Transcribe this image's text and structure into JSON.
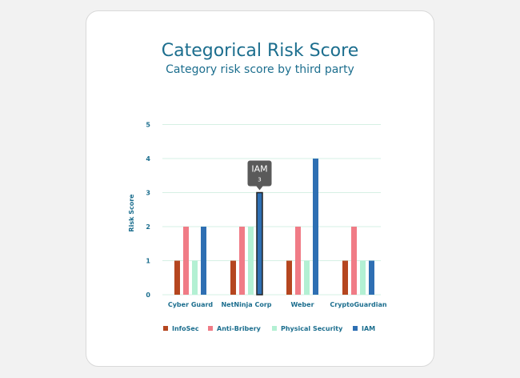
{
  "chart_data": {
    "type": "bar",
    "title": "Categorical Risk Score",
    "subtitle": "Category risk score by third party",
    "ylabel": "Risk Score",
    "xlabel": "",
    "ylim": [
      0,
      5
    ],
    "yticks": [
      0,
      1,
      2,
      3,
      4,
      5
    ],
    "grid": true,
    "legend_position": "bottom",
    "categories": [
      "Cyber Guard",
      "NetNinja Corp",
      "Weber",
      "CryptoGuardian"
    ],
    "series": [
      {
        "name": "InfoSec",
        "color": "#b5461f",
        "values": [
          1,
          1,
          1,
          1
        ]
      },
      {
        "name": "Anti-Bribery",
        "color": "#f07b86",
        "values": [
          2,
          2,
          2,
          2
        ]
      },
      {
        "name": "Physical Security",
        "color": "#b3f0d3",
        "values": [
          1,
          2,
          1,
          1
        ]
      },
      {
        "name": "IAM",
        "color": "#2e6fb3",
        "values": [
          2,
          3,
          4,
          1
        ]
      }
    ],
    "tooltip": {
      "series": "IAM",
      "category": "NetNinja Corp",
      "label": "IAM",
      "value": "3"
    }
  }
}
